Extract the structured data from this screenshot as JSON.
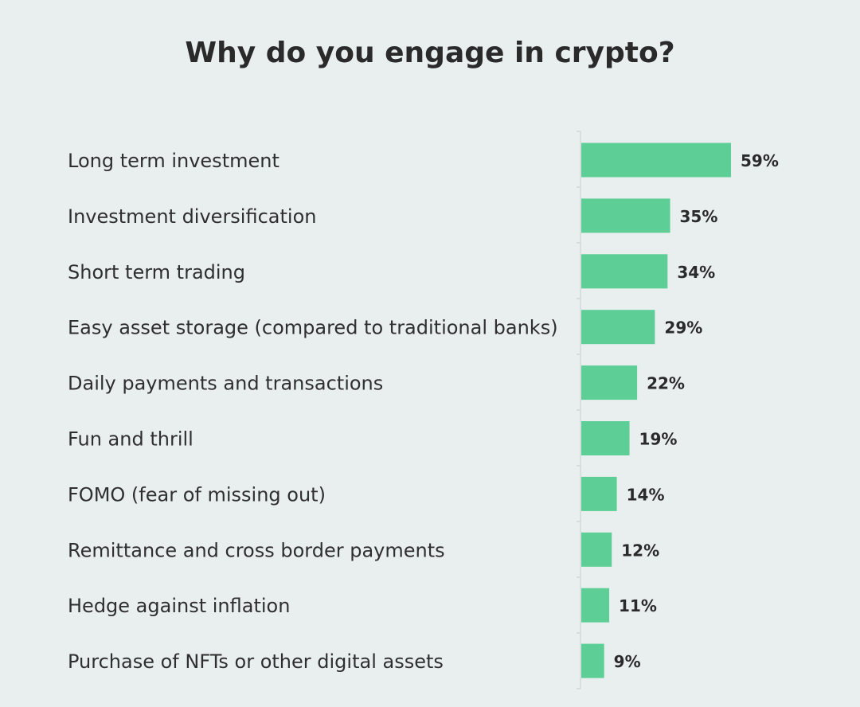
{
  "chart_data": {
    "type": "bar",
    "orientation": "horizontal",
    "title": "Why do you engage in crypto?",
    "xlabel": "",
    "ylabel": "",
    "categories": [
      "Long term investment",
      "Investment diversification",
      "Short term trading",
      "Easy asset storage (compared to traditional banks)",
      "Daily payments and transactions",
      "Fun and thrill",
      "FOMO (fear of missing out)",
      "Remittance and cross border payments",
      "Hedge against inflation",
      "Purchase of NFTs or other digital assets"
    ],
    "values": [
      59,
      35,
      34,
      29,
      22,
      19,
      14,
      12,
      11,
      9
    ],
    "value_labels": [
      "59%",
      "35%",
      "34%",
      "29%",
      "22%",
      "19%",
      "14%",
      "12%",
      "11%",
      "9%"
    ],
    "unit": "%",
    "xlim": [
      0,
      100
    ],
    "grid": false,
    "legend": "none",
    "colors": {
      "bar": "#5dcf96",
      "background": "#e9eeee",
      "text": "#2a2a2a",
      "axis": "#d2d7d7"
    }
  }
}
